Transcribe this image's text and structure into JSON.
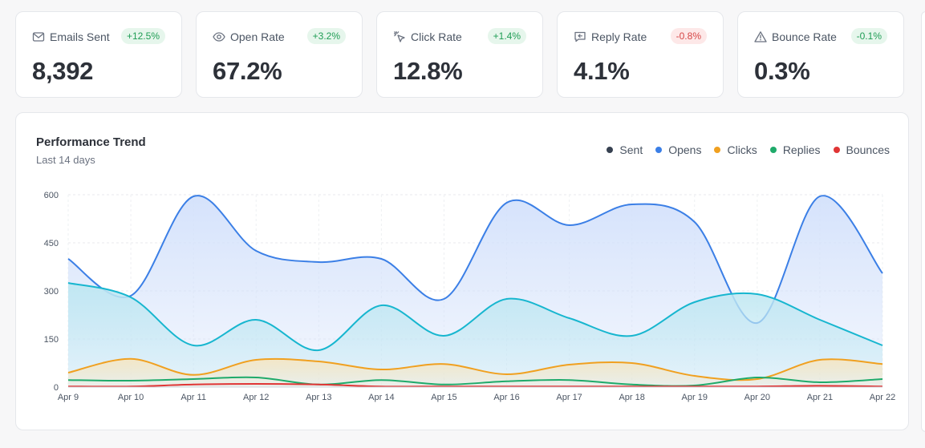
{
  "stats": [
    {
      "label": "Emails Sent",
      "badge": "+12.5%",
      "trend": "up",
      "value": "8,392",
      "icon": "mail-icon"
    },
    {
      "label": "Open Rate",
      "badge": "+3.2%",
      "trend": "up",
      "value": "67.2%",
      "icon": "eye-icon"
    },
    {
      "label": "Click Rate",
      "badge": "+1.4%",
      "trend": "up",
      "value": "12.8%",
      "icon": "cursor-click-icon"
    },
    {
      "label": "Reply Rate",
      "badge": "-0.8%",
      "trend": "down",
      "value": "4.1%",
      "icon": "message-reply-icon"
    },
    {
      "label": "Bounce Rate",
      "badge": "-0.1%",
      "trend": "up",
      "value": "0.3%",
      "icon": "warning-triangle-icon"
    }
  ],
  "colors": {
    "sent": "#374151",
    "opens": "#3b7fe6",
    "opens_area": "#cddcfa",
    "cyan": "#17b6cf",
    "clicks": "#f0a020",
    "replies": "#1faa6a",
    "bounces": "#e03535"
  },
  "chart_data": {
    "type": "area",
    "title": "Performance Trend",
    "subtitle": "Last 14 days",
    "x": [
      "Apr 9",
      "Apr 10",
      "Apr 11",
      "Apr 12",
      "Apr 13",
      "Apr 14",
      "Apr 15",
      "Apr 16",
      "Apr 17",
      "Apr 18",
      "Apr 19",
      "Apr 20",
      "Apr 21",
      "Apr 22"
    ],
    "ylim": [
      0,
      600
    ],
    "yticks": [
      0,
      150,
      300,
      450,
      600
    ],
    "grid": true,
    "legend_position": "top-right",
    "legend": [
      {
        "name": "Sent",
        "color": "#374151"
      },
      {
        "name": "Opens",
        "color": "#3b7fe6"
      },
      {
        "name": "Clicks",
        "color": "#f0a020"
      },
      {
        "name": "Replies",
        "color": "#1faa6a"
      },
      {
        "name": "Bounces",
        "color": "#e03535"
      }
    ],
    "series": [
      {
        "key": "opens",
        "values": [
          400,
          285,
          595,
          425,
          390,
          400,
          275,
          575,
          505,
          570,
          515,
          200,
          595,
          355
        ],
        "color": "#3b7fe6",
        "fill": "#d3e1fb"
      },
      {
        "values": [
          325,
          280,
          130,
          210,
          115,
          255,
          160,
          275,
          215,
          160,
          265,
          290,
          210,
          130
        ],
        "color": "#17b6cf",
        "fill": "#bfe7f2"
      },
      {
        "key": "clicks",
        "values": [
          45,
          88,
          38,
          85,
          80,
          55,
          72,
          40,
          70,
          75,
          35,
          25,
          85,
          72
        ],
        "color": "#f0a020",
        "fill": "#f5e6c4"
      },
      {
        "key": "replies",
        "values": [
          22,
          20,
          25,
          30,
          8,
          22,
          8,
          18,
          22,
          8,
          5,
          30,
          15,
          25
        ],
        "color": "#1faa6a",
        "fill": null
      },
      {
        "key": "bounces",
        "values": [
          2,
          2,
          8,
          10,
          8,
          2,
          2,
          2,
          2,
          2,
          2,
          2,
          4,
          2
        ],
        "color": "#e03535",
        "fill": null
      }
    ]
  }
}
